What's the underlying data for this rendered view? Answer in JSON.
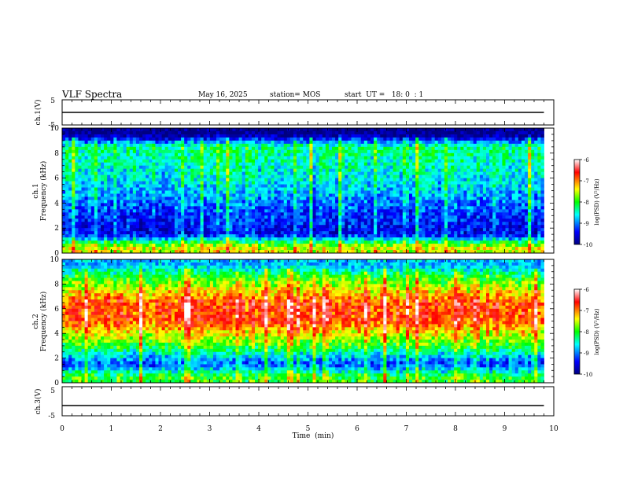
{
  "header": {
    "title": "VLF Spectra",
    "date": "May 16, 2025",
    "station": "station= MOS",
    "start": "start  UT =   18: 0  : 1"
  },
  "panels": {
    "ch1v": {
      "ylabel": "ch.1(V)",
      "yticks": [
        "5",
        "-5"
      ]
    },
    "spec1": {
      "ylabel_line1": "ch.1",
      "ylabel_line2": "Frequency (kHz)"
    },
    "spec2": {
      "ylabel_line1": "ch.2",
      "ylabel_line2": "Frequency (kHz)"
    },
    "ch3v": {
      "ylabel": "ch.3(V)",
      "yticks": [
        "5",
        "-5"
      ]
    }
  },
  "xaxis": {
    "label": "Time  (min)",
    "ticks": [
      "0",
      "1",
      "2",
      "3",
      "4",
      "5",
      "6",
      "7",
      "8",
      "9",
      "10"
    ]
  },
  "colorbar": {
    "label": "log(PSD) (V²/Hz)",
    "ticks": [
      "-6",
      "-7",
      "-8",
      "-9",
      "-10"
    ],
    "colors": [
      "#000080",
      "#0000ff",
      "#00ffff",
      "#00ff00",
      "#ffff00",
      "#ff0000",
      "#ffffff"
    ]
  },
  "chart_data": [
    {
      "type": "line",
      "name": "ch.1(V)",
      "ylabel": "ch.1(V)",
      "xlabel": "Time (min)",
      "xlim": [
        0,
        10
      ],
      "ylim": [
        -5,
        5
      ],
      "yticks": [
        5,
        -5
      ],
      "x": [
        0,
        9.8
      ],
      "y": [
        0,
        0
      ]
    },
    {
      "type": "heatmap",
      "name": "ch.1",
      "ylabel": "Frequency (kHz)",
      "xlim": [
        0,
        10
      ],
      "ylim": [
        0,
        10
      ],
      "yticks": [
        0,
        2,
        4,
        6,
        8,
        10
      ],
      "data_xmax": 9.8,
      "freq_bands_khz": [
        0.5,
        1.5,
        3,
        5,
        7,
        8.5,
        9.5
      ],
      "typical_log_psd": [
        -7.5,
        -9.5,
        -9.3,
        -8.8,
        -8.5,
        -8.3,
        -10
      ],
      "colorbar": {
        "label": "log(PSD) (V²/Hz)",
        "range": [
          -10,
          -6
        ]
      }
    },
    {
      "type": "heatmap",
      "name": "ch.2",
      "ylabel": "Frequency (kHz)",
      "xlim": [
        0,
        10
      ],
      "ylim": [
        0,
        10
      ],
      "yticks": [
        0,
        2,
        4,
        6,
        8,
        10
      ],
      "data_xmax": 9.8,
      "freq_bands_khz": [
        0.5,
        1.5,
        3,
        5,
        6.5,
        8.5,
        9.5
      ],
      "typical_log_psd": [
        -8.0,
        -9.2,
        -8.0,
        -6.8,
        -6.8,
        -8.0,
        -8.8
      ],
      "colorbar": {
        "label": "log(PSD) (V²/Hz)",
        "range": [
          -10,
          -6
        ]
      }
    },
    {
      "type": "line",
      "name": "ch.3(V)",
      "ylabel": "ch.3(V)",
      "xlabel": "Time (min)",
      "xlim": [
        0,
        10
      ],
      "ylim": [
        -5,
        5
      ],
      "yticks": [
        5,
        -5
      ],
      "x": [
        0,
        9.8
      ],
      "y": [
        -1.5,
        -1.5
      ]
    }
  ]
}
